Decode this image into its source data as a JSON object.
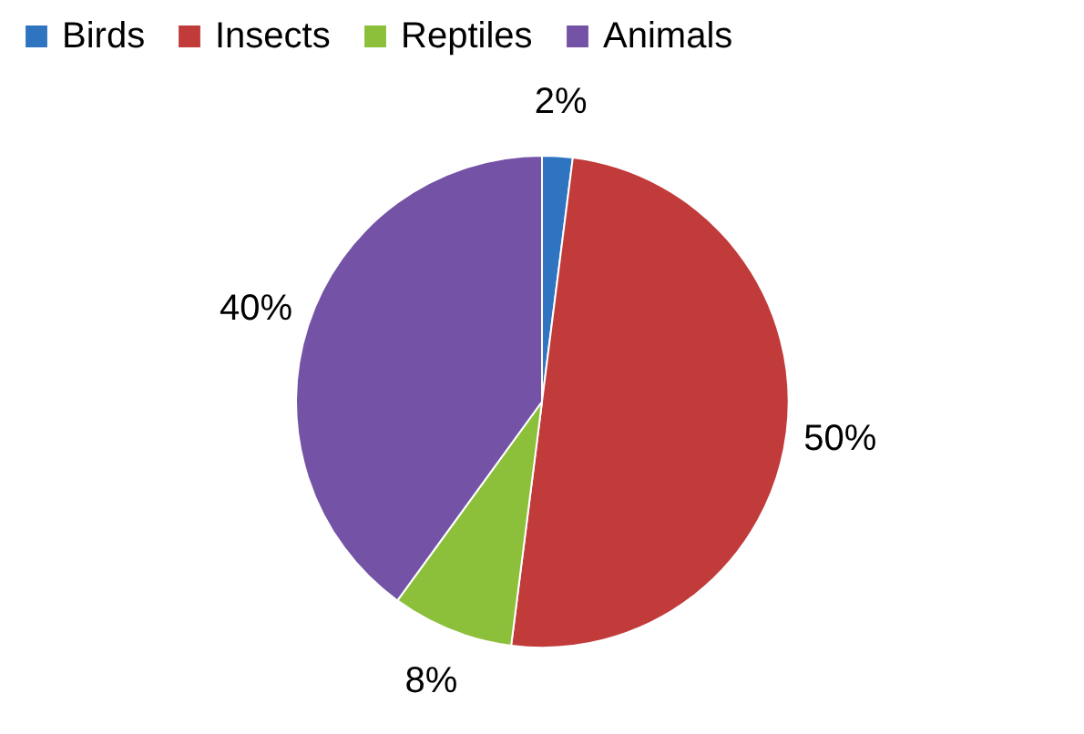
{
  "chart_data": {
    "type": "pie",
    "categories": [
      "Birds",
      "Insects",
      "Reptiles",
      "Animals"
    ],
    "values": [
      2,
      50,
      8,
      40
    ],
    "colors": [
      "#2f74c0",
      "#c23b3b",
      "#8cbf3a",
      "#7453a6"
    ],
    "value_labels": [
      "2%",
      "50%",
      "8%",
      "40%"
    ],
    "legend": "top"
  }
}
